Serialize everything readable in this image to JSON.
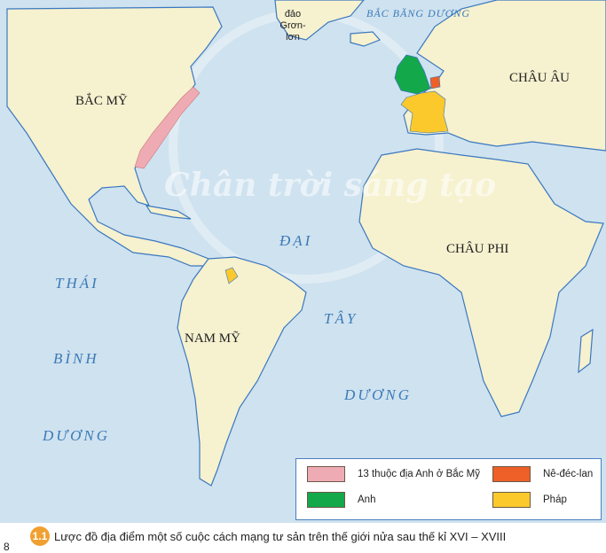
{
  "map": {
    "colors": {
      "ocean": "#cfe2ef",
      "land": "#f6f1cf",
      "coast": "#3a78c0",
      "colonies": "#efabb3",
      "england": "#13a84a",
      "netherlands": "#ee6027",
      "france": "#fbc92b"
    },
    "labels": {
      "north_america": "BẮC MỸ",
      "europe": "CHÂU ÂU",
      "africa": "CHÂU PHI",
      "south_america": "NAM MỸ",
      "greenland_1": "đảo",
      "greenland_2": "Grơn-lơn",
      "arctic": "BẮC BĂNG DƯƠNG",
      "atlantic_1": "ĐẠI",
      "atlantic_2": "TÂY",
      "atlantic_3": "DƯƠNG",
      "pacific_1": "THÁI",
      "pacific_2": "BÌNH",
      "pacific_3": "DƯƠNG"
    },
    "watermark": "Chân trời sáng tạo"
  },
  "legend": {
    "items": [
      {
        "label": "13 thuộc địa Anh ở Bắc Mỹ",
        "color": "#efabb3"
      },
      {
        "label": "Nê-đéc-lan",
        "color": "#ee6027"
      },
      {
        "label": "Anh",
        "color": "#13a84a"
      },
      {
        "label": "Pháp",
        "color": "#fbc92b"
      }
    ]
  },
  "caption": {
    "number": "1.1",
    "text": "Lược đồ địa điểm một số cuộc cách mạng tư sản trên thế giới nửa sau thế kỉ XVI – XVIII"
  },
  "page_number": "8"
}
